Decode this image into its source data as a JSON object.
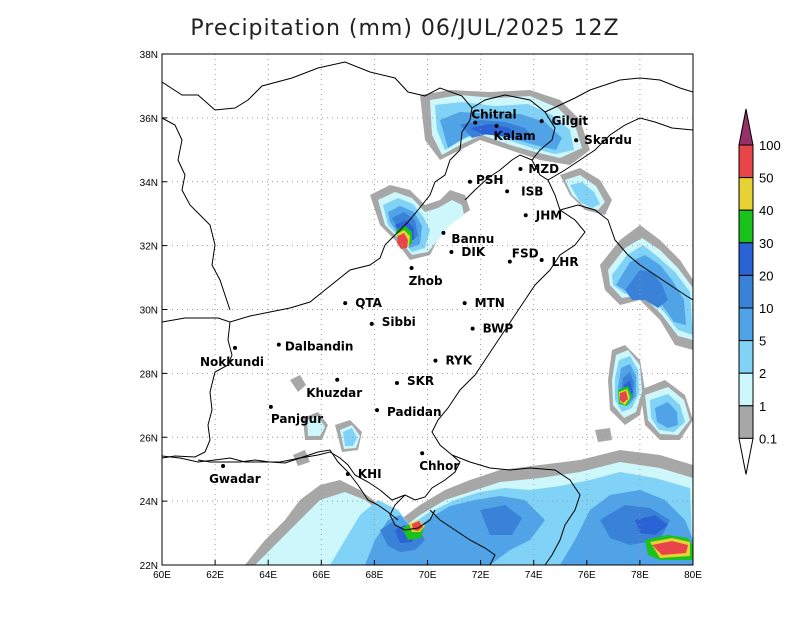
{
  "title": "Precipitation (mm) 06/JUL/2025 12Z",
  "map": {
    "lon_range": [
      60,
      80
    ],
    "lat_range": [
      22,
      38
    ],
    "x_ticks": [
      "60E",
      "62E",
      "64E",
      "66E",
      "68E",
      "70E",
      "72E",
      "74E",
      "76E",
      "78E",
      "80E"
    ],
    "y_ticks": [
      "22N",
      "24N",
      "26N",
      "28N",
      "30N",
      "32N",
      "34N",
      "36N",
      "38N"
    ],
    "grid": "dotted"
  },
  "cities": [
    {
      "name": "Chitral",
      "lon": 71.8,
      "lat": 35.85,
      "dx": -4,
      "dy": -4
    },
    {
      "name": "Gilgit",
      "lon": 74.3,
      "lat": 35.9,
      "dx": 10,
      "dy": 4
    },
    {
      "name": "Kalam",
      "lon": 72.6,
      "lat": 35.75,
      "dx": -3,
      "dy": 14
    },
    {
      "name": "Skardu",
      "lon": 75.6,
      "lat": 35.3,
      "dx": 8,
      "dy": 4
    },
    {
      "name": "MZD",
      "lon": 73.5,
      "lat": 34.4,
      "dx": 8,
      "dy": 4
    },
    {
      "name": "PSH",
      "lon": 71.6,
      "lat": 34.0,
      "dx": 6,
      "dy": 2
    },
    {
      "name": "ISB",
      "lon": 73.0,
      "lat": 33.7,
      "dx": 14,
      "dy": 4
    },
    {
      "name": "JHM",
      "lon": 73.7,
      "lat": 32.95,
      "dx": 10,
      "dy": 4
    },
    {
      "name": "Bannu",
      "lon": 70.6,
      "lat": 32.4,
      "dx": 8,
      "dy": 10
    },
    {
      "name": "DIK",
      "lon": 70.9,
      "lat": 31.8,
      "dx": 10,
      "dy": 4
    },
    {
      "name": "FSD",
      "lon": 73.1,
      "lat": 31.5,
      "dx": 2,
      "dy": -4
    },
    {
      "name": "LHR",
      "lon": 74.3,
      "lat": 31.55,
      "dx": 10,
      "dy": 6
    },
    {
      "name": "Zhob",
      "lon": 69.4,
      "lat": 31.3,
      "dx": -3,
      "dy": 17
    },
    {
      "name": "QTA",
      "lon": 66.9,
      "lat": 30.2,
      "dx": 10,
      "dy": 4
    },
    {
      "name": "MTN",
      "lon": 71.4,
      "lat": 30.2,
      "dx": 10,
      "dy": 4
    },
    {
      "name": "Sibbi",
      "lon": 67.9,
      "lat": 29.55,
      "dx": 10,
      "dy": 2
    },
    {
      "name": "BWP",
      "lon": 71.7,
      "lat": 29.4,
      "dx": 10,
      "dy": 4
    },
    {
      "name": "Dalbandin",
      "lon": 64.4,
      "lat": 28.9,
      "dx": 6,
      "dy": 6
    },
    {
      "name": "Nokkundi",
      "lon": 62.75,
      "lat": 28.8,
      "dx": -35,
      "dy": 18
    },
    {
      "name": "RYK",
      "lon": 70.3,
      "lat": 28.4,
      "dx": 10,
      "dy": 4
    },
    {
      "name": "Khuzdar",
      "lon": 66.6,
      "lat": 27.8,
      "dx": -31,
      "dy": 17
    },
    {
      "name": "SKR",
      "lon": 68.85,
      "lat": 27.7,
      "dx": 10,
      "dy": 2
    },
    {
      "name": "Panjgur",
      "lon": 64.1,
      "lat": 26.95,
      "dx": 0,
      "dy": 16
    },
    {
      "name": "Padidan",
      "lon": 68.1,
      "lat": 26.85,
      "dx": 10,
      "dy": 6
    },
    {
      "name": "Chhor",
      "lon": 69.8,
      "lat": 25.5,
      "dx": -3,
      "dy": 17
    },
    {
      "name": "Gwadar",
      "lon": 62.3,
      "lat": 25.1,
      "dx": -14,
      "dy": 17
    },
    {
      "name": "KHI",
      "lon": 67.0,
      "lat": 24.85,
      "dx": 10,
      "dy": 4
    }
  ],
  "colorbar": {
    "labels": [
      "100",
      "50",
      "40",
      "30",
      "20",
      "10",
      "5",
      "2",
      "1",
      "0.1"
    ],
    "colors": {
      "above100": "#95306a",
      "c100": "#e8454a",
      "c50": "#e6d233",
      "c40": "#1cc21c",
      "c30": "#2a63d6",
      "c20": "#3a82d8",
      "c10": "#4fa3e6",
      "c5": "#80d2f6",
      "c2": "#cdf7fb",
      "c1": "#a7a7a7",
      "below": "#ffffff"
    }
  }
}
